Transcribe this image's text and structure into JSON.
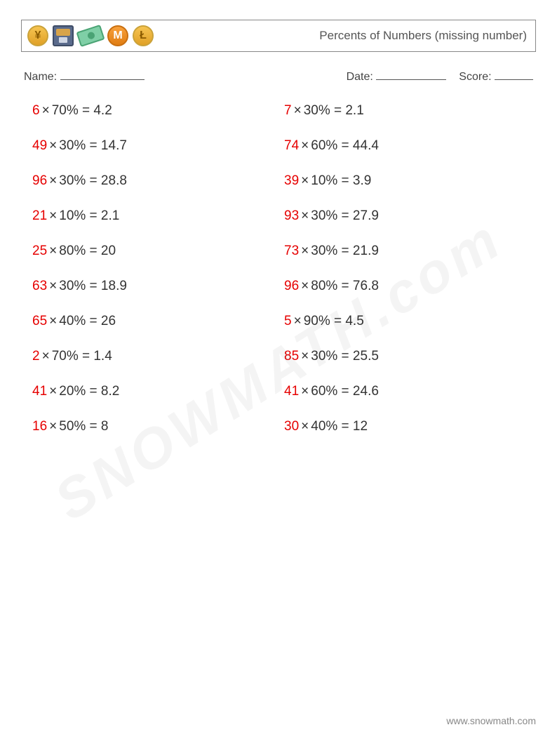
{
  "header": {
    "title": "Percents of Numbers (missing number)",
    "icons": [
      "coin-yen",
      "atm",
      "bill",
      "coin-m",
      "coin-l"
    ]
  },
  "meta": {
    "name_label": "Name:",
    "date_label": "Date:",
    "score_label": "Score:"
  },
  "watermark": "SNOWMATH.com",
  "footer": "www.snowmath.com",
  "colors": {
    "answer": "#e60000",
    "text": "#333333",
    "border": "#888888"
  },
  "typography": {
    "problem_fontsize": 19,
    "title_fontsize": 17,
    "meta_fontsize": 16
  },
  "layout": {
    "columns": 2,
    "row_gap": 28
  },
  "problems": [
    {
      "answer": "6",
      "percent": "70%",
      "result": "4.2"
    },
    {
      "answer": "7",
      "percent": "30%",
      "result": "2.1"
    },
    {
      "answer": "49",
      "percent": "30%",
      "result": "14.7"
    },
    {
      "answer": "74",
      "percent": "60%",
      "result": "44.4"
    },
    {
      "answer": "96",
      "percent": "30%",
      "result": "28.8"
    },
    {
      "answer": "39",
      "percent": "10%",
      "result": "3.9"
    },
    {
      "answer": "21",
      "percent": "10%",
      "result": "2.1"
    },
    {
      "answer": "93",
      "percent": "30%",
      "result": "27.9"
    },
    {
      "answer": "25",
      "percent": "80%",
      "result": "20"
    },
    {
      "answer": "73",
      "percent": "30%",
      "result": "21.9"
    },
    {
      "answer": "63",
      "percent": "30%",
      "result": "18.9"
    },
    {
      "answer": "96",
      "percent": "80%",
      "result": "76.8"
    },
    {
      "answer": "65",
      "percent": "40%",
      "result": "26"
    },
    {
      "answer": "5",
      "percent": "90%",
      "result": "4.5"
    },
    {
      "answer": "2",
      "percent": "70%",
      "result": "1.4"
    },
    {
      "answer": "85",
      "percent": "30%",
      "result": "25.5"
    },
    {
      "answer": "41",
      "percent": "20%",
      "result": "8.2"
    },
    {
      "answer": "41",
      "percent": "60%",
      "result": "24.6"
    },
    {
      "answer": "16",
      "percent": "50%",
      "result": "8"
    },
    {
      "answer": "30",
      "percent": "40%",
      "result": "12"
    }
  ]
}
